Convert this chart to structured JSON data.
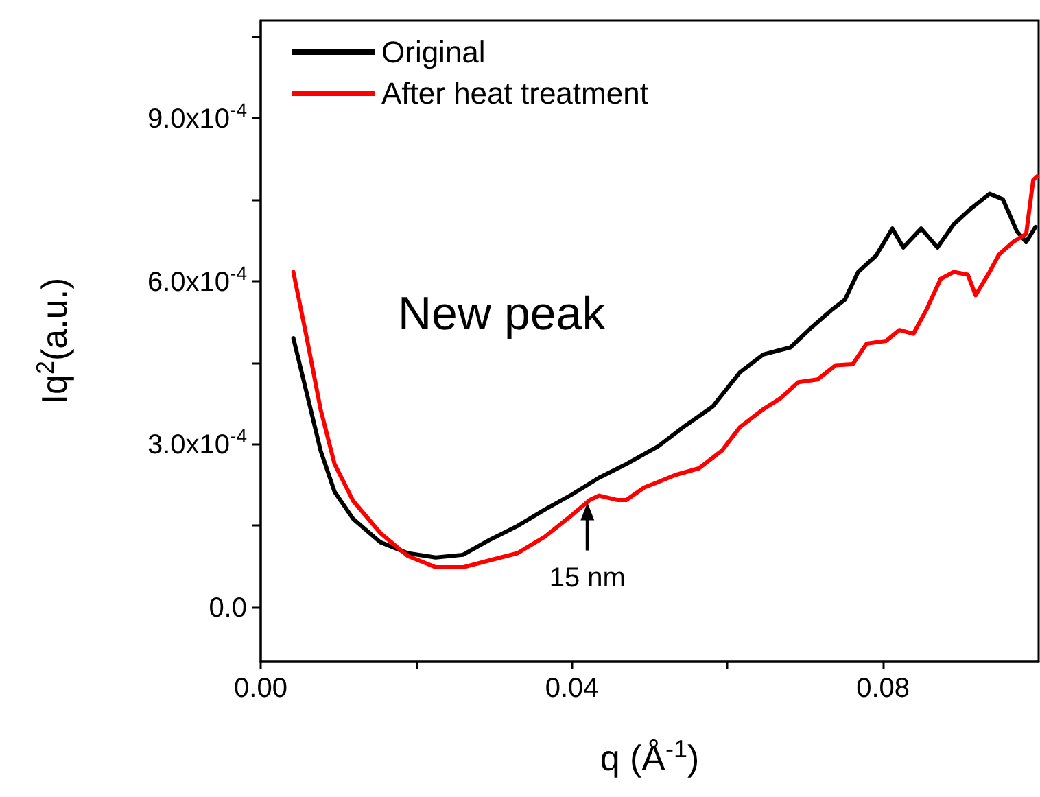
{
  "chart_data": {
    "type": "line",
    "xlabel": "q (Å$^{-1}$)",
    "ylabel": "Iq$^{2}$(a.u.)",
    "xlim": [
      0,
      0.1
    ],
    "ylim": [
      -0.0001,
      0.00108
    ],
    "xticks": [
      {
        "value": 0,
        "label": "0.00"
      },
      {
        "value": 0.02,
        "label": null
      },
      {
        "value": 0.04,
        "label": "0.04"
      },
      {
        "value": 0.06,
        "label": null
      },
      {
        "value": 0.08,
        "label": "0.08"
      }
    ],
    "yticks": [
      {
        "value": 0,
        "label": "0.0"
      },
      {
        "value": 0.00015,
        "label": null
      },
      {
        "value": 0.0003,
        "label": "3.0x10$^{-4}$"
      },
      {
        "value": 0.00045,
        "label": null
      },
      {
        "value": 0.0006,
        "label": "6.0x10$^{-4}$"
      },
      {
        "value": 0.00075,
        "label": null
      },
      {
        "value": 0.0009,
        "label": "9.0x10$^{-4}$"
      },
      {
        "value": 0.00105,
        "label": null
      }
    ],
    "grid": false,
    "legend": "top left",
    "marker": "none",
    "line_style": "solid",
    "annotations": [
      "New peak",
      {
        "text": "15 nm",
        "x": 0.042,
        "y": 0.0002
      }
    ],
    "series": [
      {
        "name": "Original",
        "color": "#000000",
        "x": [
          0.0042,
          0.006,
          0.0077,
          0.0095,
          0.0119,
          0.0154,
          0.0189,
          0.0225,
          0.026,
          0.0295,
          0.033,
          0.0365,
          0.04,
          0.0435,
          0.047,
          0.0511,
          0.0546,
          0.0581,
          0.0616,
          0.0646,
          0.0681,
          0.0709,
          0.0733,
          0.0751,
          0.0768,
          0.0791,
          0.0812,
          0.0826,
          0.0849,
          0.087,
          0.0891,
          0.0914,
          0.0937,
          0.0954,
          0.0972,
          0.0984,
          0.0996
        ],
        "values": [
          0.000495,
          0.000389,
          0.000288,
          0.000212,
          0.000162,
          0.000119,
          9.9e-05,
          9.1e-05,
          9.6e-05,
          0.000124,
          0.000149,
          0.000179,
          0.000207,
          0.000238,
          0.000263,
          0.000296,
          0.000334,
          0.000369,
          0.000432,
          0.000465,
          0.000478,
          0.000516,
          0.000546,
          0.000566,
          0.000617,
          0.000647,
          0.000697,
          0.000662,
          0.000697,
          0.000662,
          0.000705,
          0.000735,
          0.000761,
          0.000751,
          0.000692,
          0.000672,
          0.0007
        ]
      },
      {
        "name": "After heat treatment",
        "color": "#ff0000",
        "x": [
          0.0042,
          0.006,
          0.0077,
          0.0095,
          0.0119,
          0.0154,
          0.0189,
          0.0225,
          0.026,
          0.0295,
          0.033,
          0.0365,
          0.04,
          0.0423,
          0.0435,
          0.0458,
          0.047,
          0.0493,
          0.0511,
          0.0533,
          0.0563,
          0.0593,
          0.0616,
          0.0646,
          0.0668,
          0.0691,
          0.0716,
          0.0739,
          0.0761,
          0.0779,
          0.0804,
          0.0821,
          0.0839,
          0.0856,
          0.0874,
          0.0891,
          0.0909,
          0.0919,
          0.0937,
          0.0949,
          0.0967,
          0.0984,
          0.0993,
          0.0998
        ],
        "values": [
          0.000617,
          0.00049,
          0.000364,
          0.000263,
          0.000195,
          0.000136,
          9.4e-05,
          7.3e-05,
          7.3e-05,
          8.6e-05,
          9.9e-05,
          0.000129,
          0.000169,
          0.000197,
          0.000205,
          0.000197,
          0.000197,
          0.00022,
          0.00023,
          0.000243,
          0.000255,
          0.000288,
          0.000331,
          0.000364,
          0.000384,
          0.000414,
          0.000419,
          0.000445,
          0.000447,
          0.000485,
          0.00049,
          0.00051,
          0.000503,
          0.000548,
          0.000604,
          0.000617,
          0.000612,
          0.000574,
          0.000617,
          0.000649,
          0.000672,
          0.000687,
          0.000786,
          0.000793
        ]
      }
    ]
  }
}
